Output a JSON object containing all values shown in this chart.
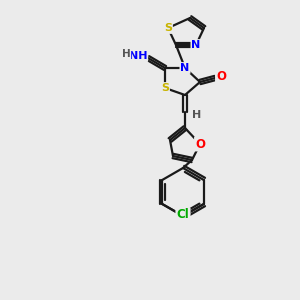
{
  "background_color": "#ebebeb",
  "bond_color": "#1a1a1a",
  "atom_colors": {
    "S": "#c8b400",
    "N": "#0000ff",
    "O": "#ff0000",
    "Cl": "#00aa00",
    "H": "#555555",
    "C": "#1a1a1a"
  },
  "figsize": [
    3.0,
    3.0
  ],
  "dpi": 100,
  "lw": 1.6
}
